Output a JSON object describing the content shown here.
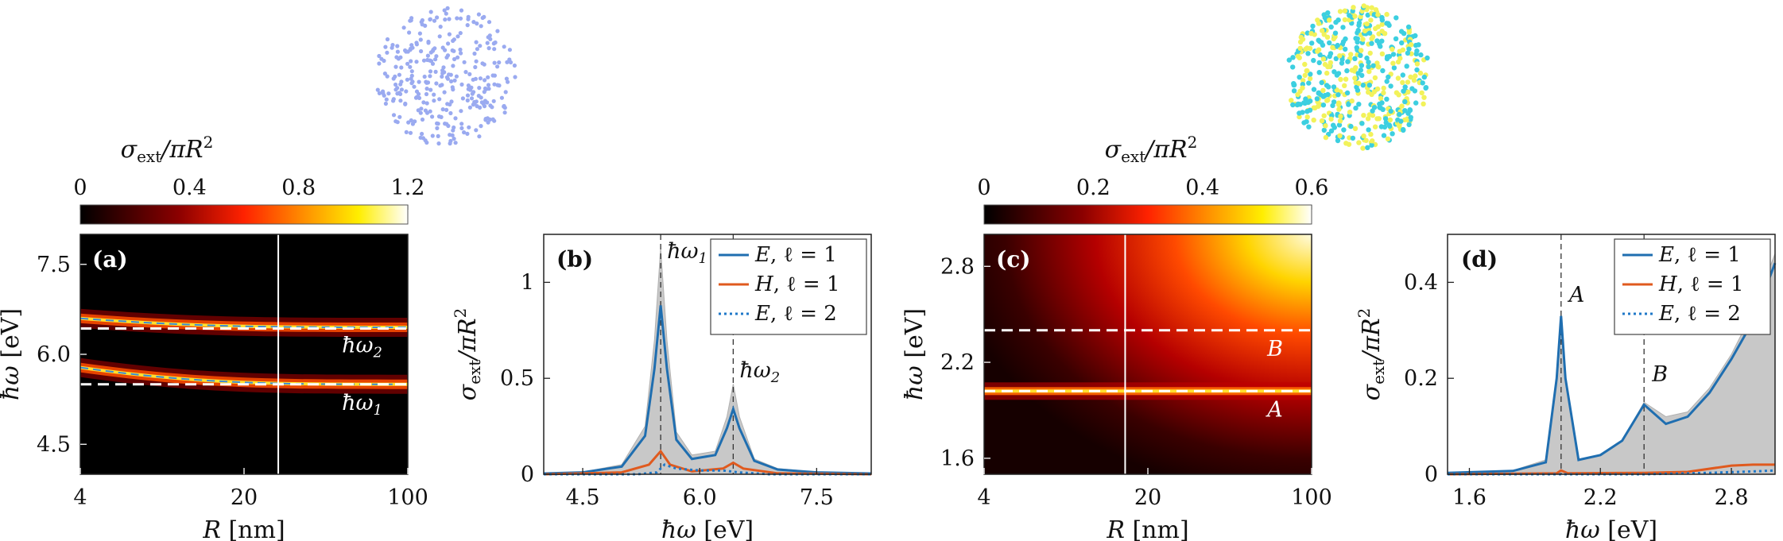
{
  "colors": {
    "series_E1": "#1f6eb0",
    "series_H1": "#e05a1e",
    "series_E2": "#1f78c8",
    "total_fill": "#c8c8c8",
    "dashed_white": "#ffffff",
    "scatter_blue": "#9aaaf0",
    "scatter_yellow": "#f2f25a",
    "scatter_cyan": "#3ccfe0"
  },
  "chart_data": [
    {
      "id": "a",
      "type": "heatmap",
      "panel_label": "(a)",
      "colorbar_label": "σext/πR²",
      "colorbar_label_sigma": "σ",
      "colorbar_label_sub": "ext",
      "colorbar_label_rest": "/πR",
      "colorbar_label_sup": "2",
      "colorbar_ticks": [
        "0",
        "0.4",
        "0.8",
        "1.2"
      ],
      "colorbar_range": [
        0,
        1.2
      ],
      "xlabel": "R [nm]",
      "xlabel_var": "R",
      "xlabel_unit": "[nm]",
      "ylabel": "ħω [eV]",
      "ylabel_var": "ħω",
      "ylabel_unit": "[eV]",
      "xscale": "log",
      "xlim": [
        4,
        100
      ],
      "xticks": [
        "4",
        "20",
        "100"
      ],
      "xtick_values": [
        4,
        20,
        100
      ],
      "ylim": [
        4.0,
        8.0
      ],
      "yticks": [
        "4.5",
        "6.0",
        "7.5"
      ],
      "ytick_values": [
        4.5,
        6.0,
        7.5
      ],
      "vertical_marker_R": 28,
      "modes": [
        {
          "label": "ħω₂",
          "label_base": "ħω",
          "label_sub": "2",
          "energy": 6.43,
          "fitted_start": 6.6,
          "fitted_end": 6.45
        },
        {
          "label": "ħω₁",
          "label_base": "ħω",
          "label_sub": "1",
          "energy": 5.5,
          "fitted_start": 5.78,
          "fitted_end": 5.5
        }
      ]
    },
    {
      "id": "b",
      "type": "line",
      "panel_label": "(b)",
      "xlabel": "ħω [eV]",
      "xlabel_var": "ħω",
      "xlabel_unit": "[eV]",
      "ylabel": "σext/πR²",
      "xlim": [
        4.0,
        8.2
      ],
      "xticks": [
        "4.5",
        "6.0",
        "7.5"
      ],
      "xtick_values": [
        4.5,
        6.0,
        7.5
      ],
      "ylim": [
        0,
        1.25
      ],
      "yticks": [
        "0",
        "0.5",
        "1"
      ],
      "ytick_values": [
        0,
        0.5,
        1
      ],
      "peaks": [
        {
          "label": "ħω₁",
          "label_base": "ħω",
          "label_sub": "1",
          "x": 5.5
        },
        {
          "label": "ħω₂",
          "label_base": "ħω",
          "label_sub": "2",
          "x": 6.43
        }
      ],
      "legend": [
        {
          "name": "E, ℓ = 1",
          "var": "E",
          "rest": ", ℓ = 1",
          "style": "solid"
        },
        {
          "name": "H, ℓ = 1",
          "var": "H",
          "rest": ", ℓ = 1",
          "style": "solid"
        },
        {
          "name": "E, ℓ = 2",
          "var": "E",
          "rest": ", ℓ = 2",
          "style": "dotted"
        }
      ],
      "series": [
        {
          "name": "total",
          "points": [
            [
              4.0,
              0.005
            ],
            [
              4.5,
              0.012
            ],
            [
              5.0,
              0.05
            ],
            [
              5.3,
              0.25
            ],
            [
              5.42,
              0.7
            ],
            [
              5.5,
              1.18
            ],
            [
              5.58,
              0.7
            ],
            [
              5.7,
              0.22
            ],
            [
              5.9,
              0.1
            ],
            [
              6.2,
              0.12
            ],
            [
              6.35,
              0.3
            ],
            [
              6.43,
              0.47
            ],
            [
              6.51,
              0.3
            ],
            [
              6.7,
              0.08
            ],
            [
              7.0,
              0.03
            ],
            [
              7.5,
              0.012
            ],
            [
              8.2,
              0.005
            ]
          ]
        },
        {
          "name": "E1",
          "points": [
            [
              4.0,
              0.004
            ],
            [
              4.5,
              0.01
            ],
            [
              5.0,
              0.04
            ],
            [
              5.3,
              0.2
            ],
            [
              5.42,
              0.55
            ],
            [
              5.5,
              0.88
            ],
            [
              5.58,
              0.55
            ],
            [
              5.7,
              0.18
            ],
            [
              5.9,
              0.08
            ],
            [
              6.2,
              0.1
            ],
            [
              6.35,
              0.24
            ],
            [
              6.43,
              0.34
            ],
            [
              6.51,
              0.24
            ],
            [
              6.7,
              0.07
            ],
            [
              7.0,
              0.025
            ],
            [
              7.5,
              0.01
            ],
            [
              8.2,
              0.004
            ]
          ]
        },
        {
          "name": "H1",
          "points": [
            [
              4.0,
              0.0
            ],
            [
              5.0,
              0.01
            ],
            [
              5.35,
              0.05
            ],
            [
              5.5,
              0.12
            ],
            [
              5.62,
              0.05
            ],
            [
              5.9,
              0.015
            ],
            [
              6.3,
              0.03
            ],
            [
              6.43,
              0.06
            ],
            [
              6.56,
              0.03
            ],
            [
              7.0,
              0.005
            ],
            [
              8.2,
              0.0
            ]
          ]
        },
        {
          "name": "E2",
          "points": [
            [
              4.0,
              0.0
            ],
            [
              5.2,
              0.0
            ],
            [
              5.45,
              0.01
            ],
            [
              5.55,
              0.05
            ],
            [
              5.7,
              0.03
            ],
            [
              6.0,
              0.02
            ],
            [
              6.3,
              0.02
            ],
            [
              6.5,
              0.01
            ],
            [
              6.9,
              0.0
            ],
            [
              8.2,
              0.0
            ]
          ]
        }
      ]
    },
    {
      "id": "c",
      "type": "heatmap",
      "panel_label": "(c)",
      "colorbar_label": "σext/πR²",
      "colorbar_label_sigma": "σ",
      "colorbar_label_sub": "ext",
      "colorbar_label_rest": "/πR",
      "colorbar_label_sup": "2",
      "colorbar_ticks": [
        "0",
        "0.2",
        "0.4",
        "0.6"
      ],
      "colorbar_range": [
        0,
        0.6
      ],
      "xlabel": "R [nm]",
      "xlabel_var": "R",
      "xlabel_unit": "[nm]",
      "ylabel": "ħω [eV]",
      "ylabel_var": "ħω",
      "ylabel_unit": "[eV]",
      "xscale": "log",
      "xlim": [
        4,
        100
      ],
      "xticks": [
        "4",
        "20",
        "100"
      ],
      "xtick_values": [
        4,
        20,
        100
      ],
      "ylim": [
        1.5,
        3.0
      ],
      "yticks": [
        "1.6",
        "2.2",
        "2.8"
      ],
      "ytick_values": [
        1.6,
        2.2,
        2.8
      ],
      "vertical_marker_R": 16,
      "modes": [
        {
          "label": "B",
          "energy": 2.4
        },
        {
          "label": "A",
          "energy": 2.02
        }
      ]
    },
    {
      "id": "d",
      "type": "line",
      "panel_label": "(d)",
      "xlabel": "ħω [eV]",
      "xlabel_var": "ħω",
      "xlabel_unit": "[eV]",
      "ylabel": "σext/πR²",
      "xlim": [
        1.5,
        3.0
      ],
      "xticks": [
        "1.6",
        "2.2",
        "2.8"
      ],
      "xtick_values": [
        1.6,
        2.2,
        2.8
      ],
      "ylim": [
        0,
        0.5
      ],
      "yticks": [
        "0",
        "0.2",
        "0.4"
      ],
      "ytick_values": [
        0,
        0.2,
        0.4
      ],
      "peaks": [
        {
          "label": "A",
          "x": 2.02
        },
        {
          "label": "B",
          "x": 2.4
        }
      ],
      "legend": [
        {
          "name": "E, ℓ = 1",
          "var": "E",
          "rest": ", ℓ = 1",
          "style": "solid"
        },
        {
          "name": "H, ℓ = 1",
          "var": "H",
          "rest": ", ℓ = 1",
          "style": "solid"
        },
        {
          "name": "E, ℓ = 2",
          "var": "E",
          "rest": ", ℓ = 2",
          "style": "dotted"
        }
      ],
      "series": [
        {
          "name": "total",
          "points": [
            [
              1.5,
              0.003
            ],
            [
              1.8,
              0.008
            ],
            [
              1.95,
              0.03
            ],
            [
              2.0,
              0.2
            ],
            [
              2.02,
              0.33
            ],
            [
              2.04,
              0.2
            ],
            [
              2.1,
              0.03
            ],
            [
              2.2,
              0.04
            ],
            [
              2.3,
              0.07
            ],
            [
              2.4,
              0.15
            ],
            [
              2.5,
              0.12
            ],
            [
              2.6,
              0.13
            ],
            [
              2.7,
              0.18
            ],
            [
              2.8,
              0.25
            ],
            [
              2.9,
              0.34
            ],
            [
              3.0,
              0.46
            ]
          ]
        },
        {
          "name": "E1",
          "points": [
            [
              1.5,
              0.003
            ],
            [
              1.8,
              0.007
            ],
            [
              1.95,
              0.025
            ],
            [
              2.0,
              0.2
            ],
            [
              2.02,
              0.33
            ],
            [
              2.04,
              0.2
            ],
            [
              2.1,
              0.03
            ],
            [
              2.2,
              0.04
            ],
            [
              2.3,
              0.07
            ],
            [
              2.4,
              0.145
            ],
            [
              2.5,
              0.105
            ],
            [
              2.6,
              0.12
            ],
            [
              2.7,
              0.17
            ],
            [
              2.8,
              0.24
            ],
            [
              2.9,
              0.32
            ],
            [
              3.0,
              0.44
            ]
          ]
        },
        {
          "name": "H1",
          "points": [
            [
              1.5,
              0.0
            ],
            [
              2.0,
              0.002
            ],
            [
              2.02,
              0.008
            ],
            [
              2.05,
              0.002
            ],
            [
              2.4,
              0.003
            ],
            [
              2.6,
              0.005
            ],
            [
              2.8,
              0.018
            ],
            [
              2.9,
              0.02
            ],
            [
              3.0,
              0.02
            ]
          ]
        },
        {
          "name": "E2",
          "points": [
            [
              1.5,
              0.0
            ],
            [
              2.4,
              0.0
            ],
            [
              2.7,
              0.003
            ],
            [
              2.9,
              0.006
            ],
            [
              3.0,
              0.008
            ]
          ]
        }
      ]
    }
  ]
}
